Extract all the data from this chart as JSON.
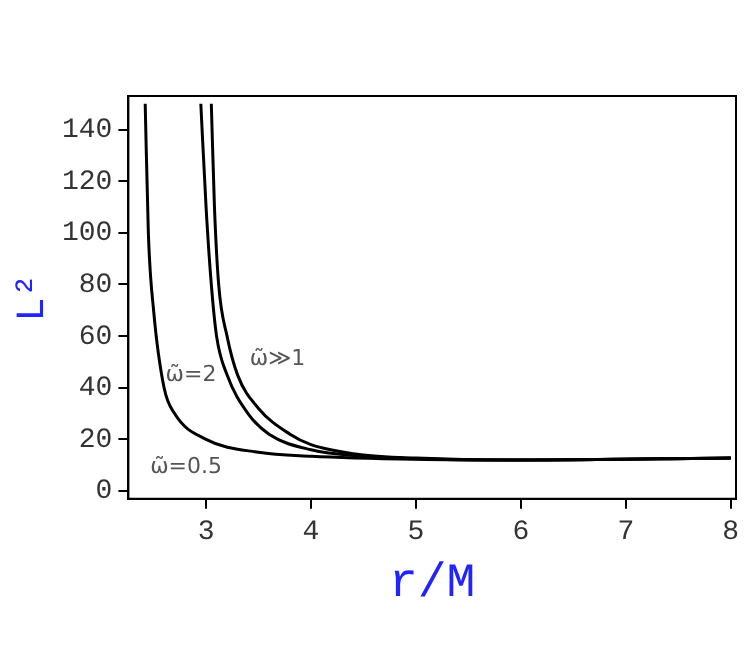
{
  "chart_data": {
    "type": "line",
    "xlabel": "r/M",
    "ylabel": "L²",
    "xlim": [
      2.26,
      8.05
    ],
    "ylim": [
      -3,
      153
    ],
    "xticks": [
      3,
      4,
      5,
      6,
      7,
      8
    ],
    "yticks": [
      0,
      20,
      40,
      60,
      80,
      100,
      120,
      140
    ],
    "grid": false,
    "legend": false,
    "marker": "none",
    "line_style": "solid",
    "series": [
      {
        "name": "ω̃=0.5",
        "color": "#000000",
        "x": [
          2.42,
          2.45,
          2.5,
          2.6,
          2.7,
          3,
          3.5,
          4,
          5,
          6,
          7,
          8
        ],
        "values": [
          150,
          100,
          70,
          40,
          30,
          20,
          15,
          13.5,
          12.3,
          12,
          12.3,
          12.8
        ]
      },
      {
        "name": "ω̃=2",
        "color": "#000000",
        "x": [
          2.95,
          3.0,
          3.05,
          3.1,
          3.2,
          3.4,
          3.6,
          4,
          4.5,
          5,
          6,
          8
        ],
        "values": [
          150,
          110,
          80,
          60,
          45,
          30,
          22,
          16,
          13.5,
          12.5,
          12,
          12.8
        ]
      },
      {
        "name": "ω̃≫1",
        "color": "#000000",
        "x": [
          3.05,
          3.08,
          3.12,
          3.2,
          3.3,
          3.5,
          3.8,
          4,
          4.5,
          5,
          6,
          8
        ],
        "values": [
          150,
          110,
          80,
          60,
          45,
          32,
          22,
          18,
          14,
          12.8,
          12,
          12.8
        ]
      }
    ]
  }
}
